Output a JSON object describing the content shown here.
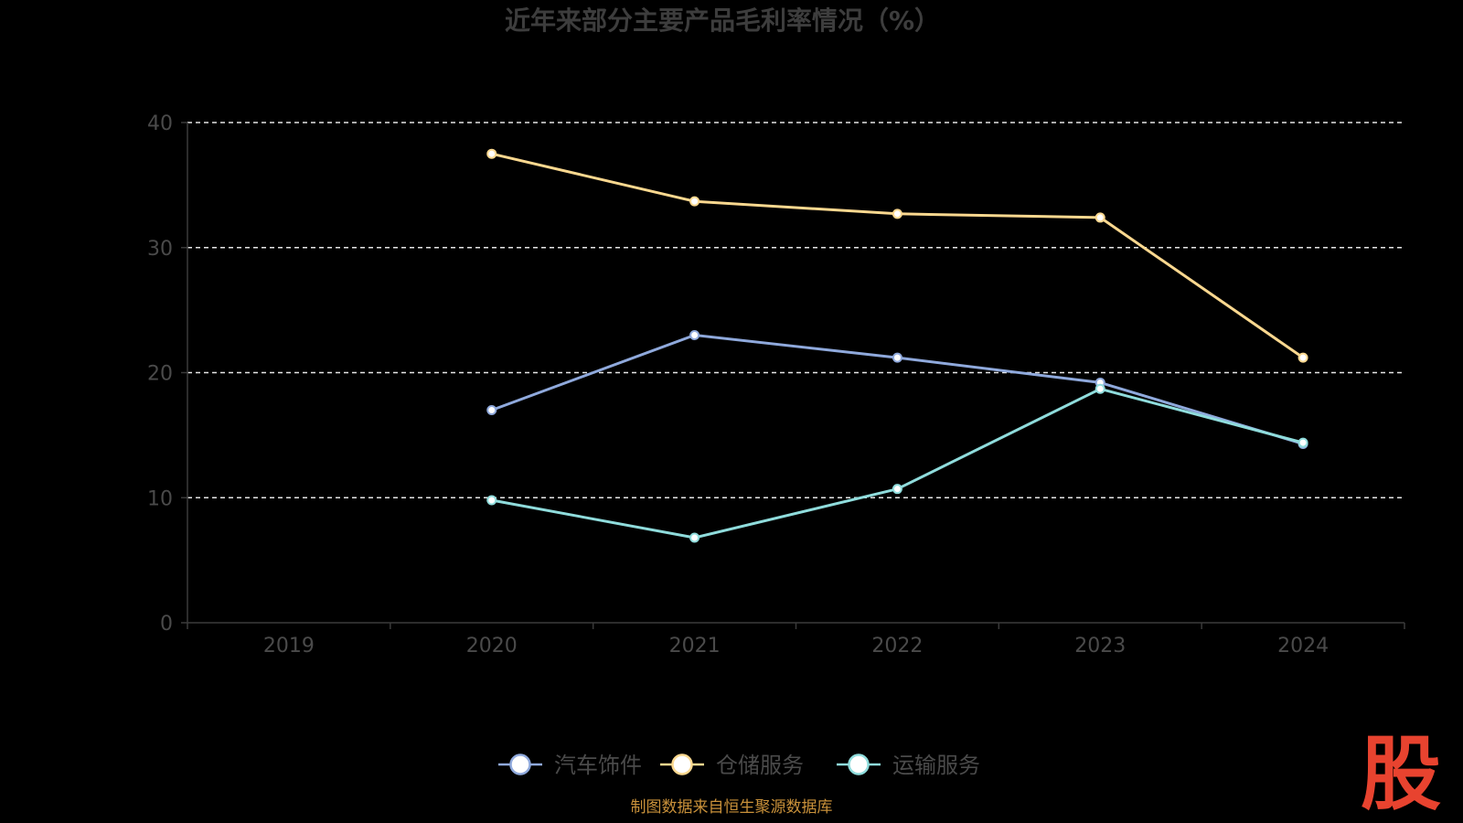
{
  "chart_data": {
    "type": "line",
    "title": "近年来部分主要产品毛利率情况（%）",
    "categories": [
      "2019",
      "2020",
      "2021",
      "2022",
      "2023",
      "2024"
    ],
    "yticks": [
      "0",
      "10",
      "20",
      "30",
      "40"
    ],
    "ylim": [
      0,
      40
    ],
    "grid": true,
    "legend_position": "bottom",
    "series": [
      {
        "name": "汽车饰件",
        "color": "#8fa9dc",
        "values": [
          null,
          17.0,
          23.0,
          21.2,
          19.2,
          14.3
        ]
      },
      {
        "name": "仓储服务",
        "color": "#fbd88f",
        "values": [
          null,
          37.5,
          33.7,
          32.7,
          32.4,
          21.2
        ]
      },
      {
        "name": "运输服务",
        "color": "#8fdcdc",
        "values": [
          null,
          9.8,
          6.8,
          10.7,
          18.7,
          14.4
        ]
      }
    ]
  },
  "footer": {
    "source": "制图数据来自恒生聚源数据库",
    "logo_text": "股"
  }
}
